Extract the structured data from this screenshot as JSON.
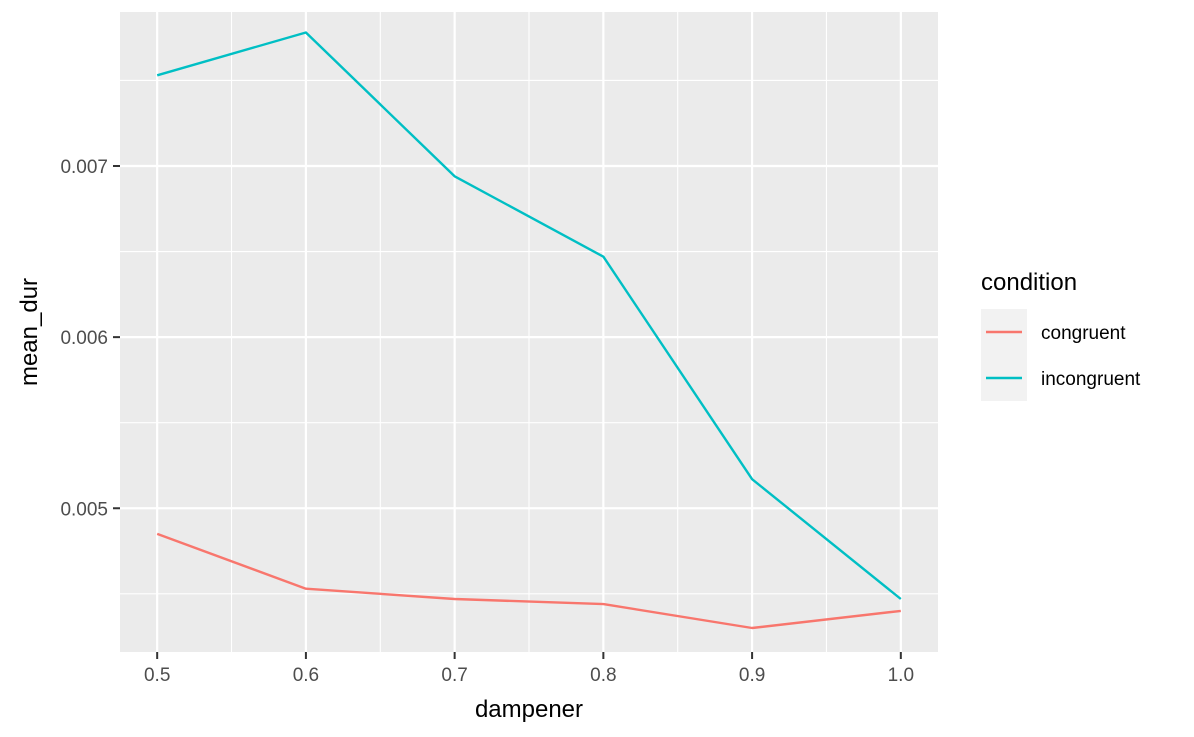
{
  "chart_data": {
    "type": "line",
    "title": "",
    "xlabel": "dampener",
    "ylabel": "mean_dur",
    "x": [
      0.5,
      0.6,
      0.7,
      0.8,
      0.9,
      1.0
    ],
    "x_tick_labels": [
      "0.5",
      "0.6",
      "0.7",
      "0.8",
      "0.9",
      "1.0"
    ],
    "y_ticks": [
      0.005,
      0.006,
      0.007
    ],
    "y_tick_labels": [
      "0.005",
      "0.006",
      "0.007"
    ],
    "xlim": [
      0.475,
      1.025
    ],
    "ylim": [
      0.00416,
      0.0079
    ],
    "grid": true,
    "legend": {
      "title": "condition",
      "position": "right"
    },
    "series": [
      {
        "name": "congruent",
        "color": "#F8766D",
        "values": [
          0.00485,
          0.00453,
          0.00447,
          0.00444,
          0.0043,
          0.0044
        ]
      },
      {
        "name": "incongruent",
        "color": "#00BFC4",
        "values": [
          0.00753,
          0.00778,
          0.00694,
          0.00647,
          0.00517,
          0.00447
        ]
      }
    ]
  },
  "colors": {
    "panel_bg": "#EBEBEB",
    "grid": "#FFFFFF",
    "legend_key_bg": "#F2F2F2"
  }
}
